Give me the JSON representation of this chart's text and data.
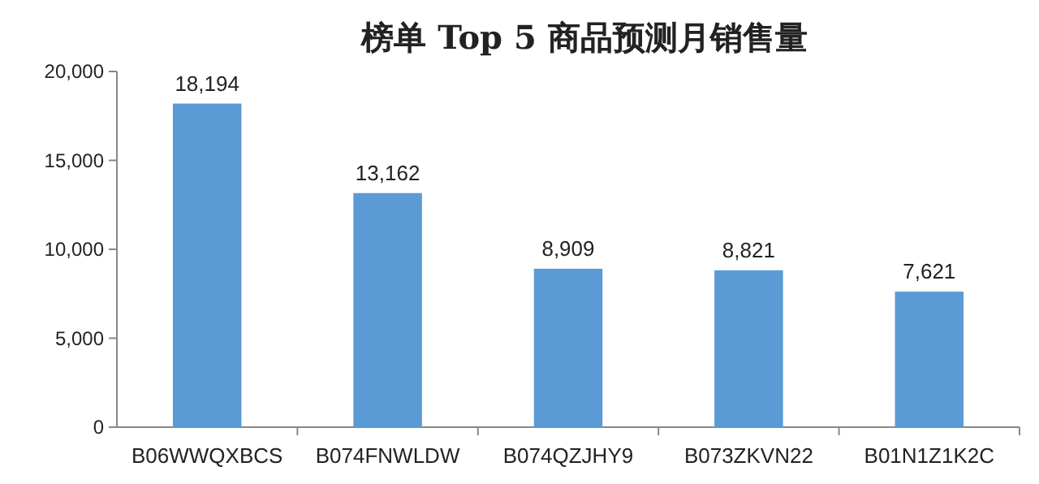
{
  "chart_data": {
    "type": "bar",
    "title": "榜单 Top 5 商品预测月销售量",
    "categories": [
      "B06WWQXBCS",
      "B074FNWLDW",
      "B074QZJHY9",
      "B073ZKVN22",
      "B01N1Z1K2C"
    ],
    "values": [
      18194,
      13162,
      8909,
      8821,
      7621
    ],
    "value_labels": [
      "18,194",
      "13,162",
      "8,909",
      "8,821",
      "7,621"
    ],
    "color": "#5b9bd5",
    "ylim": [
      0,
      20000
    ],
    "yticks": [
      {
        "value": 0,
        "label": "0"
      },
      {
        "value": 5000,
        "label": "5,000"
      },
      {
        "value": 10000,
        "label": "10,000"
      },
      {
        "value": 15000,
        "label": "15,000"
      },
      {
        "value": 20000,
        "label": "20,000"
      }
    ],
    "grid": false
  }
}
